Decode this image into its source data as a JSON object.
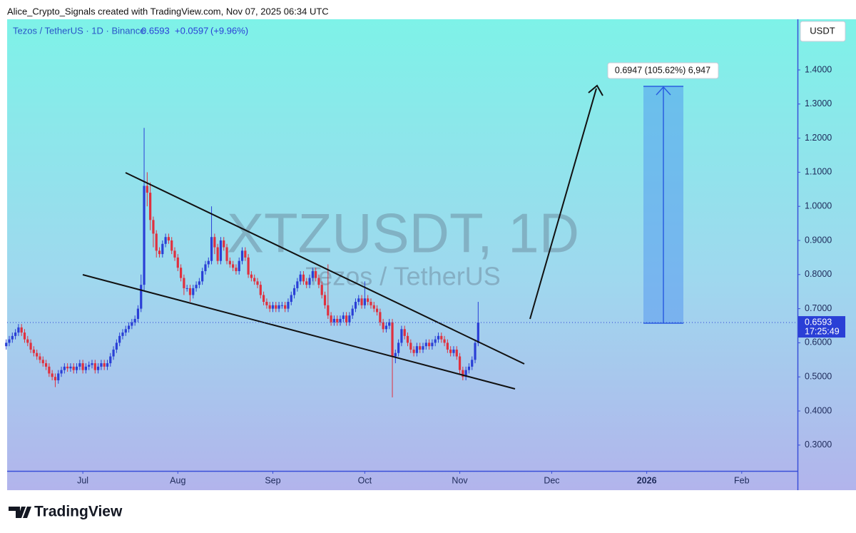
{
  "header": "Alice_Crypto_Signals created with TradingView.com, Nov 07, 2025 06:34 UTC",
  "footer": "TradingView",
  "chart_data": {
    "type": "candlestick",
    "legend": {
      "symbol": "Tezos / TetherUS · 1D · Binance",
      "price": "0.6593",
      "change": "+0.0597",
      "change_percent": "(+9.96%)"
    },
    "watermark": "XTZUSDT, 1D",
    "watermark_subtitle": "Tezos / TetherUS",
    "currency": "USDT",
    "last_price": 0.6593,
    "countdown": "17:25:49",
    "measure_label": "0.6947 (105.62%) 6,947",
    "up_color": "#2a3fd6",
    "down_color": "#e0303e",
    "grid": false,
    "xlim": [
      156.3,
      414.2
    ],
    "xticks": [
      {
        "value": 181,
        "label": "Jul"
      },
      {
        "value": 212,
        "label": "Aug"
      },
      {
        "value": 243,
        "label": "Sep"
      },
      {
        "value": 273,
        "label": "Oct"
      },
      {
        "value": 304,
        "label": "Nov"
      },
      {
        "value": 334,
        "label": "Dec"
      },
      {
        "value": 365,
        "label": "2026"
      },
      {
        "value": 396,
        "label": "Feb"
      }
    ],
    "ylim": [
      0.2243,
      1.5485
    ],
    "yticks": [
      {
        "value": 0.3,
        "label": "0.3000"
      },
      {
        "value": 0.4,
        "label": "0.4000"
      },
      {
        "value": 0.5,
        "label": "0.5000"
      },
      {
        "value": 0.6,
        "label": "0.6000"
      },
      {
        "value": 0.7,
        "label": "0.7000"
      },
      {
        "value": 0.8,
        "label": "0.8000"
      },
      {
        "value": 0.9,
        "label": "0.9000"
      },
      {
        "value": 1.0,
        "label": "1.0000"
      },
      {
        "value": 1.1,
        "label": "1.1000"
      },
      {
        "value": 1.2,
        "label": "1.2000"
      },
      {
        "value": 1.3,
        "label": "1.3000"
      },
      {
        "value": 1.4,
        "label": "1.4000"
      }
    ],
    "x": [
      156,
      157,
      158,
      159,
      160,
      161,
      162,
      163,
      164,
      165,
      166,
      167,
      168,
      169,
      170,
      171,
      172,
      173,
      174,
      175,
      176,
      177,
      178,
      179,
      180,
      181,
      182,
      183,
      184,
      185,
      186,
      187,
      188,
      189,
      190,
      191,
      192,
      193,
      194,
      195,
      196,
      197,
      198,
      199,
      200,
      201,
      202,
      203,
      204,
      205,
      206,
      207,
      208,
      209,
      210,
      211,
      212,
      213,
      214,
      215,
      216,
      217,
      218,
      219,
      220,
      221,
      222,
      223,
      224,
      225,
      226,
      227,
      228,
      229,
      230,
      231,
      232,
      233,
      234,
      235,
      236,
      237,
      238,
      239,
      240,
      241,
      242,
      243,
      244,
      245,
      246,
      247,
      248,
      249,
      250,
      251,
      252,
      253,
      254,
      255,
      256,
      257,
      258,
      259,
      260,
      261,
      262,
      263,
      264,
      265,
      266,
      267,
      268,
      269,
      270,
      271,
      272,
      273,
      274,
      275,
      276,
      277,
      278,
      279,
      280,
      281,
      282,
      283,
      284,
      285,
      286,
      287,
      288,
      289,
      290,
      291,
      292,
      293,
      294,
      295,
      296,
      297,
      298,
      299,
      300,
      301,
      302,
      303,
      304,
      305,
      306,
      307,
      308,
      309,
      310
    ],
    "open": [
      0.59,
      0.6,
      0.61,
      0.62,
      0.63,
      0.645,
      0.63,
      0.61,
      0.6,
      0.58,
      0.57,
      0.56,
      0.55,
      0.54,
      0.53,
      0.51,
      0.5,
      0.49,
      0.51,
      0.52,
      0.53,
      0.525,
      0.53,
      0.52,
      0.53,
      0.54,
      0.52,
      0.53,
      0.535,
      0.54,
      0.52,
      0.53,
      0.54,
      0.53,
      0.54,
      0.56,
      0.58,
      0.6,
      0.62,
      0.63,
      0.64,
      0.65,
      0.66,
      0.67,
      0.7,
      0.77,
      1.06,
      1.04,
      0.96,
      0.92,
      0.87,
      0.86,
      0.89,
      0.91,
      0.9,
      0.87,
      0.85,
      0.82,
      0.79,
      0.76,
      0.76,
      0.74,
      0.76,
      0.77,
      0.78,
      0.81,
      0.83,
      0.84,
      0.91,
      0.88,
      0.84,
      0.9,
      0.88,
      0.84,
      0.83,
      0.82,
      0.81,
      0.84,
      0.87,
      0.85,
      0.8,
      0.79,
      0.78,
      0.77,
      0.74,
      0.72,
      0.71,
      0.7,
      0.71,
      0.7,
      0.71,
      0.71,
      0.7,
      0.72,
      0.74,
      0.76,
      0.78,
      0.8,
      0.78,
      0.77,
      0.79,
      0.81,
      0.79,
      0.77,
      0.74,
      0.71,
      0.68,
      0.66,
      0.67,
      0.66,
      0.67,
      0.68,
      0.66,
      0.68,
      0.7,
      0.72,
      0.73,
      0.71,
      0.73,
      0.72,
      0.71,
      0.7,
      0.69,
      0.66,
      0.64,
      0.65,
      0.66,
      0.56,
      0.57,
      0.6,
      0.64,
      0.62,
      0.6,
      0.58,
      0.57,
      0.59,
      0.58,
      0.59,
      0.6,
      0.59,
      0.6,
      0.61,
      0.62,
      0.61,
      0.6,
      0.58,
      0.57,
      0.58,
      0.56,
      0.52,
      0.5,
      0.52,
      0.53,
      0.55,
      0.5996
    ],
    "high": [
      0.61,
      0.62,
      0.63,
      0.64,
      0.655,
      0.655,
      0.64,
      0.62,
      0.61,
      0.59,
      0.58,
      0.57,
      0.56,
      0.55,
      0.54,
      0.52,
      0.51,
      0.52,
      0.53,
      0.54,
      0.54,
      0.54,
      0.54,
      0.54,
      0.55,
      0.55,
      0.54,
      0.545,
      0.55,
      0.55,
      0.54,
      0.55,
      0.55,
      0.55,
      0.57,
      0.59,
      0.61,
      0.63,
      0.64,
      0.65,
      0.66,
      0.67,
      0.68,
      0.71,
      0.8,
      1.23,
      1.1,
      1.07,
      0.97,
      0.93,
      0.88,
      0.9,
      0.92,
      0.92,
      0.91,
      0.88,
      0.86,
      0.83,
      0.8,
      0.77,
      0.77,
      0.77,
      0.78,
      0.79,
      0.82,
      0.84,
      0.85,
      1.0,
      0.92,
      0.89,
      0.91,
      0.91,
      0.89,
      0.85,
      0.84,
      0.83,
      0.85,
      0.88,
      0.88,
      0.86,
      0.81,
      0.8,
      0.79,
      0.78,
      0.75,
      0.73,
      0.72,
      0.72,
      0.72,
      0.72,
      0.72,
      0.72,
      0.73,
      0.75,
      0.77,
      0.79,
      0.81,
      0.81,
      0.79,
      0.8,
      0.82,
      0.82,
      0.8,
      0.78,
      0.75,
      0.83,
      0.69,
      0.68,
      0.68,
      0.68,
      0.69,
      0.69,
      0.69,
      0.71,
      0.73,
      0.74,
      0.74,
      0.78,
      0.74,
      0.73,
      0.72,
      0.71,
      0.7,
      0.67,
      0.66,
      0.67,
      0.67,
      0.58,
      0.61,
      0.65,
      0.65,
      0.63,
      0.61,
      0.59,
      0.6,
      0.6,
      0.6,
      0.61,
      0.61,
      0.61,
      0.62,
      0.63,
      0.63,
      0.62,
      0.61,
      0.59,
      0.59,
      0.59,
      0.57,
      0.53,
      0.53,
      0.54,
      0.56,
      0.61,
      0.72
    ],
    "low": [
      0.58,
      0.59,
      0.6,
      0.61,
      0.62,
      0.62,
      0.6,
      0.59,
      0.57,
      0.56,
      0.55,
      0.54,
      0.53,
      0.52,
      0.5,
      0.49,
      0.47,
      0.48,
      0.5,
      0.51,
      0.515,
      0.515,
      0.51,
      0.51,
      0.52,
      0.51,
      0.51,
      0.52,
      0.525,
      0.51,
      0.51,
      0.52,
      0.52,
      0.52,
      0.53,
      0.55,
      0.57,
      0.59,
      0.61,
      0.62,
      0.63,
      0.64,
      0.65,
      0.66,
      0.69,
      0.75,
      1.0,
      0.93,
      0.88,
      0.85,
      0.85,
      0.85,
      0.88,
      0.89,
      0.86,
      0.84,
      0.81,
      0.78,
      0.74,
      0.75,
      0.72,
      0.73,
      0.75,
      0.76,
      0.77,
      0.8,
      0.82,
      0.83,
      0.86,
      0.83,
      0.83,
      0.87,
      0.83,
      0.82,
      0.81,
      0.8,
      0.8,
      0.83,
      0.84,
      0.79,
      0.78,
      0.77,
      0.76,
      0.73,
      0.71,
      0.7,
      0.69,
      0.69,
      0.69,
      0.69,
      0.7,
      0.69,
      0.69,
      0.71,
      0.73,
      0.75,
      0.77,
      0.77,
      0.76,
      0.76,
      0.78,
      0.78,
      0.76,
      0.73,
      0.7,
      0.67,
      0.65,
      0.65,
      0.65,
      0.65,
      0.66,
      0.65,
      0.65,
      0.67,
      0.69,
      0.71,
      0.7,
      0.7,
      0.71,
      0.7,
      0.69,
      0.68,
      0.65,
      0.63,
      0.63,
      0.64,
      0.44,
      0.54,
      0.56,
      0.59,
      0.61,
      0.59,
      0.57,
      0.56,
      0.56,
      0.57,
      0.57,
      0.58,
      0.58,
      0.58,
      0.59,
      0.6,
      0.6,
      0.59,
      0.57,
      0.56,
      0.56,
      0.55,
      0.51,
      0.49,
      0.49,
      0.51,
      0.52,
      0.54,
      0.59
    ],
    "close": [
      0.6,
      0.61,
      0.62,
      0.63,
      0.645,
      0.63,
      0.61,
      0.6,
      0.58,
      0.57,
      0.56,
      0.55,
      0.54,
      0.53,
      0.51,
      0.5,
      0.49,
      0.51,
      0.52,
      0.53,
      0.525,
      0.53,
      0.52,
      0.53,
      0.54,
      0.52,
      0.53,
      0.535,
      0.54,
      0.52,
      0.53,
      0.54,
      0.53,
      0.54,
      0.56,
      0.58,
      0.6,
      0.62,
      0.63,
      0.64,
      0.65,
      0.66,
      0.67,
      0.7,
      0.77,
      1.06,
      1.04,
      0.96,
      0.92,
      0.87,
      0.86,
      0.89,
      0.91,
      0.9,
      0.87,
      0.85,
      0.82,
      0.79,
      0.76,
      0.76,
      0.74,
      0.76,
      0.77,
      0.78,
      0.81,
      0.83,
      0.84,
      0.91,
      0.88,
      0.84,
      0.9,
      0.88,
      0.84,
      0.83,
      0.82,
      0.81,
      0.84,
      0.87,
      0.85,
      0.8,
      0.79,
      0.78,
      0.77,
      0.74,
      0.72,
      0.71,
      0.7,
      0.71,
      0.7,
      0.71,
      0.71,
      0.7,
      0.72,
      0.74,
      0.76,
      0.78,
      0.8,
      0.78,
      0.77,
      0.79,
      0.81,
      0.79,
      0.77,
      0.74,
      0.71,
      0.68,
      0.66,
      0.67,
      0.66,
      0.67,
      0.68,
      0.66,
      0.68,
      0.7,
      0.72,
      0.73,
      0.71,
      0.73,
      0.72,
      0.71,
      0.7,
      0.69,
      0.66,
      0.64,
      0.65,
      0.66,
      0.56,
      0.57,
      0.6,
      0.64,
      0.62,
      0.6,
      0.58,
      0.57,
      0.59,
      0.58,
      0.59,
      0.6,
      0.59,
      0.6,
      0.61,
      0.62,
      0.61,
      0.6,
      0.58,
      0.57,
      0.58,
      0.56,
      0.52,
      0.5,
      0.52,
      0.53,
      0.55,
      0.5996,
      0.6593
    ]
  }
}
